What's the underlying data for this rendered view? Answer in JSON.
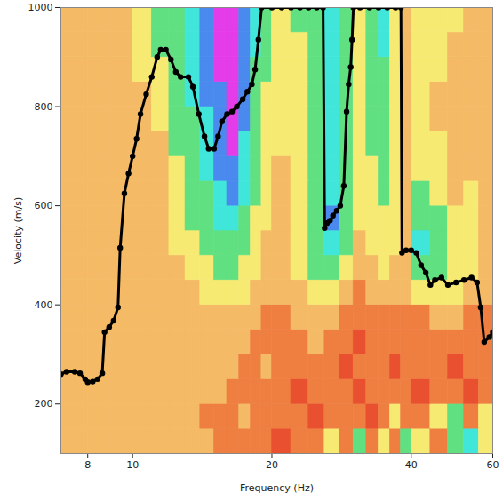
{
  "chart_data": {
    "type": "heatmap",
    "x_label": "Frequency (Hz)",
    "y_label": "Velocity (m/s)",
    "log": "x",
    "xlim": [
      7,
      60
    ],
    "xticks": [
      8,
      10,
      20,
      40,
      60
    ],
    "ylim": [
      100,
      1000
    ],
    "yticks": [
      200,
      400,
      600,
      800,
      1000
    ],
    "grid": false,
    "colors": [
      "#e9502f",
      "#f09048",
      "#f5c26a",
      "#f7ec74",
      "#62e07c",
      "#3ee6e0",
      "#4a86ee",
      "#e43ce8"
    ],
    "cells": {
      "x_edges": [
        7,
        8,
        9,
        10,
        11,
        12,
        13,
        14,
        15,
        16,
        17,
        18,
        19,
        20,
        22,
        24,
        26,
        28,
        30,
        32,
        34,
        36,
        38,
        40,
        44,
        48,
        52,
        56,
        60
      ],
      "y_edges": [
        100,
        150,
        200,
        250,
        300,
        350,
        400,
        450,
        500,
        550,
        600,
        650,
        700,
        750,
        800,
        850,
        900,
        950,
        1000
      ],
      "values": [
        [
          0.3,
          0.3,
          0.3,
          0.3,
          0.3,
          0.3,
          0.3,
          0.3,
          0.15,
          0.15,
          0.15,
          0.15,
          0.15,
          0.05,
          0.15,
          0.15,
          0.45,
          0.15,
          0.6,
          0.15,
          0.45,
          0.15,
          0.6,
          0.45,
          0.15,
          0.6,
          0.72,
          0.45
        ],
        [
          0.3,
          0.3,
          0.3,
          0.3,
          0.3,
          0.3,
          0.3,
          0.15,
          0.15,
          0.15,
          0.3,
          0.15,
          0.15,
          0.15,
          0.15,
          0.05,
          0.15,
          0.15,
          0.15,
          0.05,
          0.15,
          0.45,
          0.15,
          0.15,
          0.45,
          0.6,
          0.15,
          0.45
        ],
        [
          0.3,
          0.3,
          0.3,
          0.3,
          0.3,
          0.3,
          0.3,
          0.3,
          0.3,
          0.15,
          0.15,
          0.15,
          0.15,
          0.15,
          0.05,
          0.15,
          0.15,
          0.15,
          0.05,
          0.15,
          0.15,
          0.15,
          0.15,
          0.05,
          0.15,
          0.15,
          0.05,
          0.15
        ],
        [
          0.3,
          0.3,
          0.3,
          0.3,
          0.3,
          0.3,
          0.3,
          0.3,
          0.3,
          0.3,
          0.15,
          0.15,
          0.3,
          0.15,
          0.15,
          0.15,
          0.15,
          0.05,
          0.15,
          0.15,
          0.15,
          0.05,
          0.15,
          0.15,
          0.15,
          0.05,
          0.15,
          0.15
        ],
        [
          0.3,
          0.3,
          0.3,
          0.3,
          0.3,
          0.3,
          0.3,
          0.3,
          0.3,
          0.3,
          0.3,
          0.15,
          0.15,
          0.15,
          0.15,
          0.3,
          0.15,
          0.15,
          0.05,
          0.15,
          0.15,
          0.15,
          0.15,
          0.15,
          0.15,
          0.15,
          0.15,
          0.15
        ],
        [
          0.3,
          0.3,
          0.3,
          0.3,
          0.3,
          0.3,
          0.3,
          0.3,
          0.3,
          0.3,
          0.3,
          0.3,
          0.15,
          0.15,
          0.3,
          0.3,
          0.3,
          0.15,
          0.15,
          0.15,
          0.15,
          0.15,
          0.15,
          0.15,
          0.3,
          0.3,
          0.15,
          0.15
        ],
        [
          0.3,
          0.3,
          0.3,
          0.3,
          0.3,
          0.3,
          0.3,
          0.45,
          0.45,
          0.45,
          0.45,
          0.3,
          0.3,
          0.3,
          0.3,
          0.45,
          0.45,
          0.3,
          0.15,
          0.3,
          0.3,
          0.3,
          0.3,
          0.45,
          0.45,
          0.45,
          0.3,
          0.3
        ],
        [
          0.3,
          0.3,
          0.3,
          0.3,
          0.3,
          0.3,
          0.45,
          0.45,
          0.6,
          0.6,
          0.45,
          0.45,
          0.3,
          0.3,
          0.45,
          0.6,
          0.6,
          0.45,
          0.3,
          0.3,
          0.45,
          0.3,
          0.3,
          0.6,
          0.6,
          0.45,
          0.45,
          0.3
        ],
        [
          0.3,
          0.3,
          0.3,
          0.3,
          0.3,
          0.45,
          0.45,
          0.6,
          0.6,
          0.6,
          0.6,
          0.45,
          0.3,
          0.3,
          0.45,
          0.6,
          0.72,
          0.6,
          0.3,
          0.45,
          0.45,
          0.45,
          0.3,
          0.72,
          0.6,
          0.45,
          0.45,
          0.3
        ],
        [
          0.3,
          0.3,
          0.3,
          0.3,
          0.3,
          0.45,
          0.6,
          0.6,
          0.72,
          0.72,
          0.6,
          0.45,
          0.45,
          0.3,
          0.45,
          0.6,
          0.86,
          0.6,
          0.45,
          0.45,
          0.45,
          0.45,
          0.3,
          0.6,
          0.6,
          0.45,
          0.45,
          0.3
        ],
        [
          0.3,
          0.3,
          0.3,
          0.3,
          0.3,
          0.45,
          0.6,
          0.6,
          0.72,
          0.86,
          0.72,
          0.6,
          0.45,
          0.3,
          0.45,
          0.6,
          0.72,
          0.6,
          0.45,
          0.45,
          0.6,
          0.45,
          0.3,
          0.6,
          0.45,
          0.3,
          0.45,
          0.3
        ],
        [
          0.3,
          0.3,
          0.3,
          0.3,
          0.3,
          0.45,
          0.6,
          0.72,
          0.86,
          0.86,
          0.72,
          0.6,
          0.45,
          0.3,
          0.45,
          0.6,
          0.72,
          0.6,
          0.45,
          0.45,
          0.6,
          0.45,
          0.3,
          0.45,
          0.45,
          0.3,
          0.3,
          0.3
        ],
        [
          0.3,
          0.3,
          0.3,
          0.3,
          0.3,
          0.6,
          0.6,
          0.72,
          0.86,
          1,
          0.72,
          0.6,
          0.45,
          0.45,
          0.45,
          0.6,
          0.72,
          0.6,
          0.45,
          0.6,
          0.6,
          0.45,
          0.3,
          0.45,
          0.45,
          0.3,
          0.3,
          0.3
        ],
        [
          0.3,
          0.3,
          0.3,
          0.3,
          0.45,
          0.6,
          0.6,
          0.72,
          0.86,
          1,
          0.86,
          0.6,
          0.45,
          0.45,
          0.45,
          0.6,
          0.72,
          0.6,
          0.45,
          0.6,
          0.6,
          0.45,
          0.3,
          0.45,
          0.3,
          0.3,
          0.3,
          0.3
        ],
        [
          0.3,
          0.3,
          0.3,
          0.3,
          0.45,
          0.6,
          0.72,
          0.86,
          0.86,
          1,
          0.86,
          0.6,
          0.45,
          0.45,
          0.45,
          0.6,
          0.72,
          0.6,
          0.45,
          0.6,
          0.6,
          0.45,
          0.3,
          0.45,
          0.3,
          0.3,
          0.3,
          0.3
        ],
        [
          0.3,
          0.3,
          0.3,
          0.45,
          0.45,
          0.6,
          0.72,
          0.86,
          1,
          1,
          0.86,
          0.6,
          0.6,
          0.45,
          0.45,
          0.6,
          0.72,
          0.6,
          0.45,
          0.6,
          0.6,
          0.45,
          0.3,
          0.45,
          0.45,
          0.3,
          0.3,
          0.3
        ],
        [
          0.3,
          0.3,
          0.3,
          0.45,
          0.6,
          0.6,
          0.72,
          0.86,
          1,
          1,
          0.86,
          0.72,
          0.6,
          0.45,
          0.45,
          0.6,
          0.72,
          0.6,
          0.45,
          0.6,
          0.72,
          0.45,
          0.3,
          0.45,
          0.45,
          0.3,
          0.3,
          0.3
        ],
        [
          0.3,
          0.3,
          0.3,
          0.45,
          0.6,
          0.6,
          0.72,
          0.86,
          1,
          1,
          0.86,
          0.72,
          0.6,
          0.45,
          0.6,
          0.6,
          0.72,
          0.6,
          0.45,
          0.6,
          0.72,
          0.45,
          0.3,
          0.45,
          0.45,
          0.45,
          0.3,
          0.3
        ]
      ]
    },
    "series": [
      {
        "type": "line",
        "color": "#000000",
        "marker": "circle",
        "x": [
          7.0,
          7.2,
          7.5,
          7.7,
          7.9,
          8.0,
          8.2,
          8.4,
          8.6,
          8.7,
          8.9,
          9.1,
          9.3,
          9.4,
          9.6,
          9.8,
          10.0,
          10.2,
          10.4,
          10.7,
          11.0,
          11.3,
          11.5,
          11.8,
          12.1,
          12.4,
          12.7,
          13.2,
          13.5,
          13.9,
          14.3,
          14.6,
          15.0,
          15.3,
          15.6,
          16.0,
          16.4,
          16.8,
          17.3,
          17.7,
          18.1,
          18.4,
          18.7,
          19.0,
          20.0,
          21.0,
          22.0,
          23.0,
          24.0,
          25.0,
          25.8,
          26.0,
          26.3,
          26.7,
          27.1,
          27.6,
          28.1,
          28.6,
          29.0,
          29.3,
          29.6,
          29.8,
          30.0,
          31.0,
          32.5,
          34.0,
          35.5,
          37.0,
          38.0,
          38.2,
          39.0,
          40.0,
          41.0,
          42.0,
          43.0,
          44.0,
          45.0,
          46.5,
          48.0,
          50.0,
          52.0,
          54.0,
          55.5,
          56.5,
          57.5,
          59.0,
          60.0
        ],
        "values": [
          260,
          265,
          265,
          262,
          250,
          244,
          245,
          250,
          262,
          345,
          355,
          368,
          395,
          515,
          625,
          665,
          700,
          735,
          785,
          825,
          860,
          900,
          915,
          915,
          895,
          870,
          860,
          860,
          840,
          785,
          740,
          715,
          715,
          740,
          770,
          785,
          790,
          800,
          815,
          830,
          845,
          875,
          935,
          1000,
          1000,
          1000,
          1000,
          1000,
          1000,
          1000,
          1000,
          555,
          565,
          570,
          580,
          590,
          600,
          640,
          790,
          845,
          880,
          935,
          1000,
          1000,
          1000,
          1000,
          1000,
          1000,
          1000,
          505,
          510,
          510,
          505,
          480,
          465,
          440,
          450,
          455,
          440,
          445,
          450,
          455,
          445,
          395,
          325,
          335,
          345
        ]
      }
    ]
  }
}
